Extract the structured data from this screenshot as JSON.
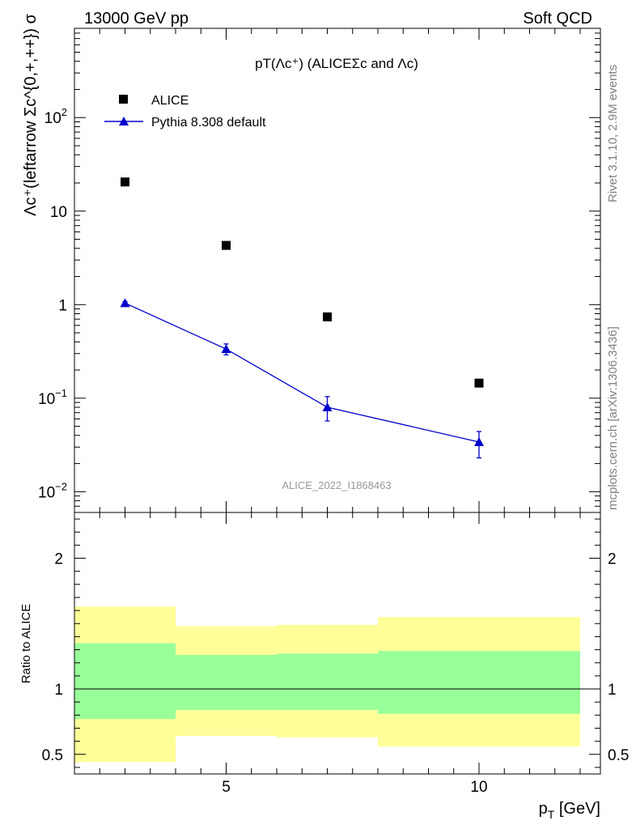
{
  "header": {
    "left": "13000 GeV pp",
    "right": "Soft QCD"
  },
  "side_text": {
    "rivet": "Rivet 3.1.10,  2.9M events",
    "mcplots": "mcplots.cern.ch [arXiv:1306.3436]"
  },
  "chart_data": [
    {
      "type": "scatter",
      "title": "pT(Λc⁺) (ALICEΣc and Λc)",
      "watermark": "ALICE_2022_I1868463",
      "ylabel": "Λc⁺(leftarrow Σc^{0,+,++}) σ",
      "yscale": "log",
      "ylim": [
        0.006,
        900
      ],
      "xlim": [
        2,
        12.4
      ],
      "yticks": [
        {
          "value": 0.01,
          "base": "10",
          "exp": "−2"
        },
        {
          "value": 0.1,
          "base": "10",
          "exp": "−1"
        },
        {
          "value": 1,
          "base": "1",
          "exp": ""
        },
        {
          "value": 10,
          "base": "10",
          "exp": ""
        },
        {
          "value": 100,
          "base": "10",
          "exp": "2"
        }
      ],
      "legend_position": "top-left",
      "series": [
        {
          "name": "ALICE",
          "marker": "square",
          "color": "#000000",
          "points": [
            {
              "x": 3,
              "y": 20.5
            },
            {
              "x": 5,
              "y": 4.3
            },
            {
              "x": 7,
              "y": 0.74
            },
            {
              "x": 10,
              "y": 0.145
            }
          ]
        },
        {
          "name": "Pythia 8.308 default",
          "marker": "triangle",
          "color": "#0000cc",
          "line": true,
          "points": [
            {
              "x": 3,
              "y": 1.04,
              "ylo": 1.0,
              "yhi": 1.08
            },
            {
              "x": 5,
              "y": 0.335,
              "ylo": 0.29,
              "yhi": 0.38
            },
            {
              "x": 7,
              "y": 0.08,
              "ylo": 0.057,
              "yhi": 0.104
            },
            {
              "x": 10,
              "y": 0.034,
              "ylo": 0.023,
              "yhi": 0.044
            }
          ]
        }
      ]
    },
    {
      "type": "area",
      "ylabel": "Ratio to ALICE",
      "xlabel": "p_T [GeV]",
      "xlim": [
        2,
        12.4
      ],
      "ylim": [
        0.35,
        2.35
      ],
      "xticks": [
        {
          "value": 5,
          "label": "5"
        },
        {
          "value": 10,
          "label": "10"
        }
      ],
      "yticks": [
        {
          "value": 0.5,
          "label": "0.5"
        },
        {
          "value": 1,
          "label": "1"
        },
        {
          "value": 2,
          "label": "2"
        }
      ],
      "reference_line": 1,
      "bands": [
        {
          "x0": 2,
          "x1": 4,
          "outer": [
            0.44,
            1.63
          ],
          "inner": [
            0.77,
            1.35
          ]
        },
        {
          "x0": 4,
          "x1": 6,
          "outer": [
            0.64,
            1.48
          ],
          "inner": [
            0.84,
            1.26
          ]
        },
        {
          "x0": 6,
          "x1": 8,
          "outer": [
            0.63,
            1.49
          ],
          "inner": [
            0.84,
            1.27
          ]
        },
        {
          "x0": 8,
          "x1": 12,
          "outer": [
            0.56,
            1.55
          ],
          "inner": [
            0.81,
            1.29
          ]
        }
      ],
      "colors": {
        "outer": "#ffff99",
        "inner": "#99ff99"
      }
    }
  ]
}
